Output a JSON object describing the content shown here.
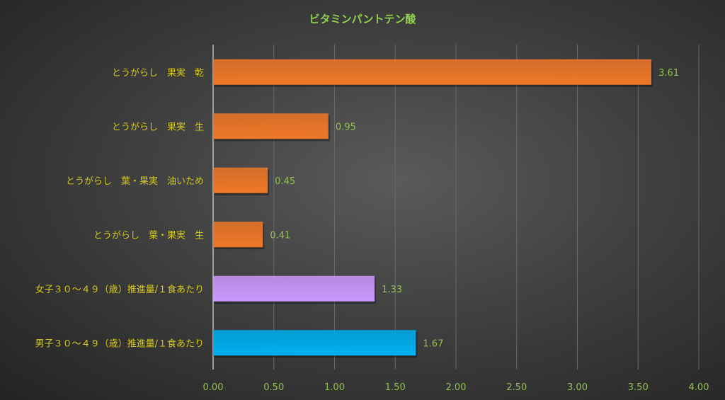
{
  "chart_data": {
    "type": "bar",
    "orientation": "horizontal",
    "title": "ビタミンパントテン酸",
    "categories": [
      "とうがらし　果実　乾",
      "とうがらし　果実　生",
      "とうがらし　葉・果実　油いため",
      "とうがらし　葉・果実　生",
      "女子３０～４９（歳）推進量/１食あたり",
      "男子３０～４９（歳）推進量/１食あたり"
    ],
    "values": [
      3.61,
      0.95,
      0.45,
      0.41,
      1.33,
      1.67
    ],
    "value_labels": [
      "3.61",
      "0.95",
      "0.45",
      "0.41",
      "1.33",
      "1.67"
    ],
    "bar_colors": [
      "#f07828",
      "#f07828",
      "#f07828",
      "#f07828",
      "#cc99ff",
      "#00b0f0"
    ],
    "xlim": [
      0,
      4
    ],
    "xticks": [
      "0.00",
      "0.50",
      "1.00",
      "1.50",
      "2.00",
      "2.50",
      "3.00",
      "3.50",
      "4.00"
    ],
    "grid": true,
    "legend": "none",
    "colors": {
      "title": "#92d050",
      "category_labels": "#d4c81e",
      "value_labels": "#92c050",
      "tick_labels": "#92c050",
      "grid": "#6a6a6a"
    }
  }
}
